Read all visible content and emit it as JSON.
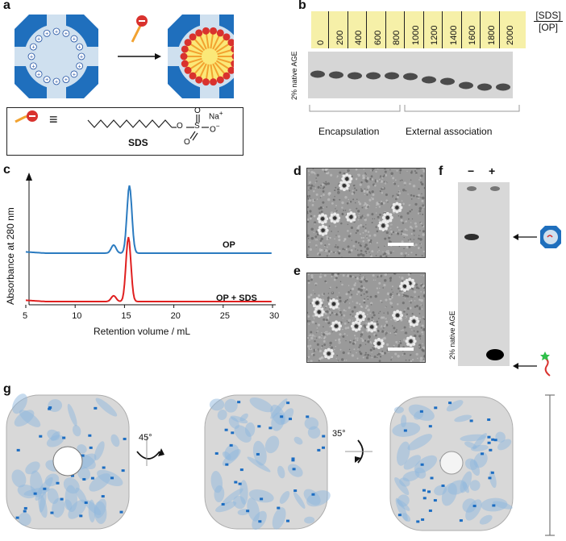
{
  "panels": {
    "a": {
      "letter": "a",
      "legend_box": {
        "equiv": "≡",
        "compound": "SDS",
        "na": "Na",
        "plus": "+",
        "o_minus": "O",
        "minus": "−",
        "o1": "O",
        "o2": "O",
        "o3": "O",
        "s": "S"
      }
    },
    "b": {
      "letter": "b",
      "header_top": "[SDS]",
      "header_bottom": "[OP]",
      "lane_labels": [
        "0",
        "200",
        "400",
        "600",
        "800",
        "1000",
        "1200",
        "1400",
        "1600",
        "1800",
        "2000"
      ],
      "gel_label": "2% native AGE",
      "group_left": "Encapsulation",
      "group_right": "External association"
    },
    "c": {
      "letter": "c",
      "ylabel": "Absorbance  at 280 nm",
      "xlabel": "Retention volume / mL",
      "x_ticks": [
        "5",
        "10",
        "15",
        "20",
        "25",
        "30"
      ],
      "trace1_label": "OP",
      "trace2_label": "OP + SDS",
      "colors": {
        "trace1": "#2b7bc0",
        "trace2": "#e02020"
      }
    },
    "d": {
      "letter": "d"
    },
    "e": {
      "letter": "e"
    },
    "f": {
      "letter": "f",
      "lane_minus": "−",
      "lane_plus": "+",
      "gel_label": "2% native AGE"
    },
    "g": {
      "letter": "g",
      "angle1": "45°",
      "angle2": "35°"
    }
  },
  "chart_data": {
    "type": "line",
    "xlabel": "Retention volume / mL",
    "ylabel": "Absorbance  at 280 nm",
    "xlim": [
      5,
      30
    ],
    "series": [
      {
        "name": "OP",
        "x": [
          5,
          12,
          13.5,
          14,
          14.5,
          15,
          15.5,
          16,
          16.5,
          17,
          20,
          30
        ],
        "y": [
          0.02,
          0.03,
          0.1,
          0.12,
          0.1,
          0.5,
          1.0,
          0.45,
          0.08,
          0.03,
          0.02,
          0.01
        ]
      },
      {
        "name": "OP + SDS",
        "x": [
          5,
          12,
          13.5,
          14,
          14.5,
          15,
          15.4,
          16,
          16.5,
          17,
          20,
          30
        ],
        "y": [
          0.02,
          0.03,
          0.07,
          0.09,
          0.08,
          0.5,
          0.98,
          0.4,
          0.07,
          0.03,
          0.02,
          0.01
        ]
      }
    ]
  }
}
